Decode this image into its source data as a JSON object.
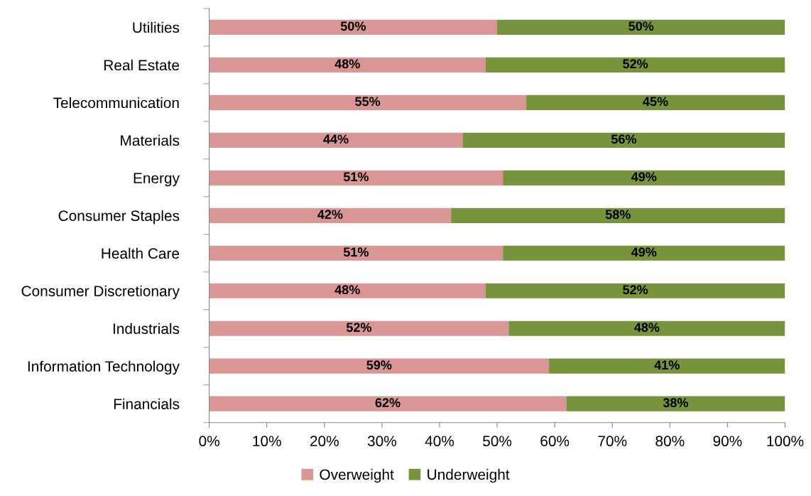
{
  "chart_data": {
    "type": "bar",
    "orientation": "horizontal",
    "stacked": true,
    "categories": [
      "Utilities",
      "Real Estate",
      "Telecommunication",
      "Materials",
      "Energy",
      "Consumer Staples",
      "Health Care",
      "Consumer Discretionary",
      "Industrials",
      "Information Technology",
      "Financials"
    ],
    "series": [
      {
        "name": "Overweight",
        "color": "#d99694",
        "values": [
          50,
          48,
          55,
          44,
          51,
          42,
          51,
          48,
          52,
          59,
          62
        ],
        "value_labels": [
          "50%",
          "48%",
          "55%",
          "44%",
          "51%",
          "42%",
          "51%",
          "48%",
          "52%",
          "59%",
          "62%"
        ]
      },
      {
        "name": "Underweight",
        "color": "#77933c",
        "values": [
          50,
          52,
          45,
          56,
          49,
          58,
          49,
          52,
          48,
          41,
          38
        ],
        "value_labels": [
          "50%",
          "52%",
          "45%",
          "56%",
          "49%",
          "58%",
          "49%",
          "52%",
          "48%",
          "41%",
          "38%"
        ]
      }
    ],
    "xlim": [
      0,
      100
    ],
    "xticks": [
      {
        "value": 0,
        "label": "0%"
      },
      {
        "value": 10,
        "label": "10%"
      },
      {
        "value": 20,
        "label": "20%"
      },
      {
        "value": 30,
        "label": "30%"
      },
      {
        "value": 40,
        "label": "40%"
      },
      {
        "value": 50,
        "label": "50%"
      },
      {
        "value": 60,
        "label": "60%"
      },
      {
        "value": 70,
        "label": "70%"
      },
      {
        "value": 80,
        "label": "80%"
      },
      {
        "value": 90,
        "label": "90%"
      },
      {
        "value": 100,
        "label": "100%"
      }
    ],
    "grid": false,
    "legend": "bottom"
  }
}
